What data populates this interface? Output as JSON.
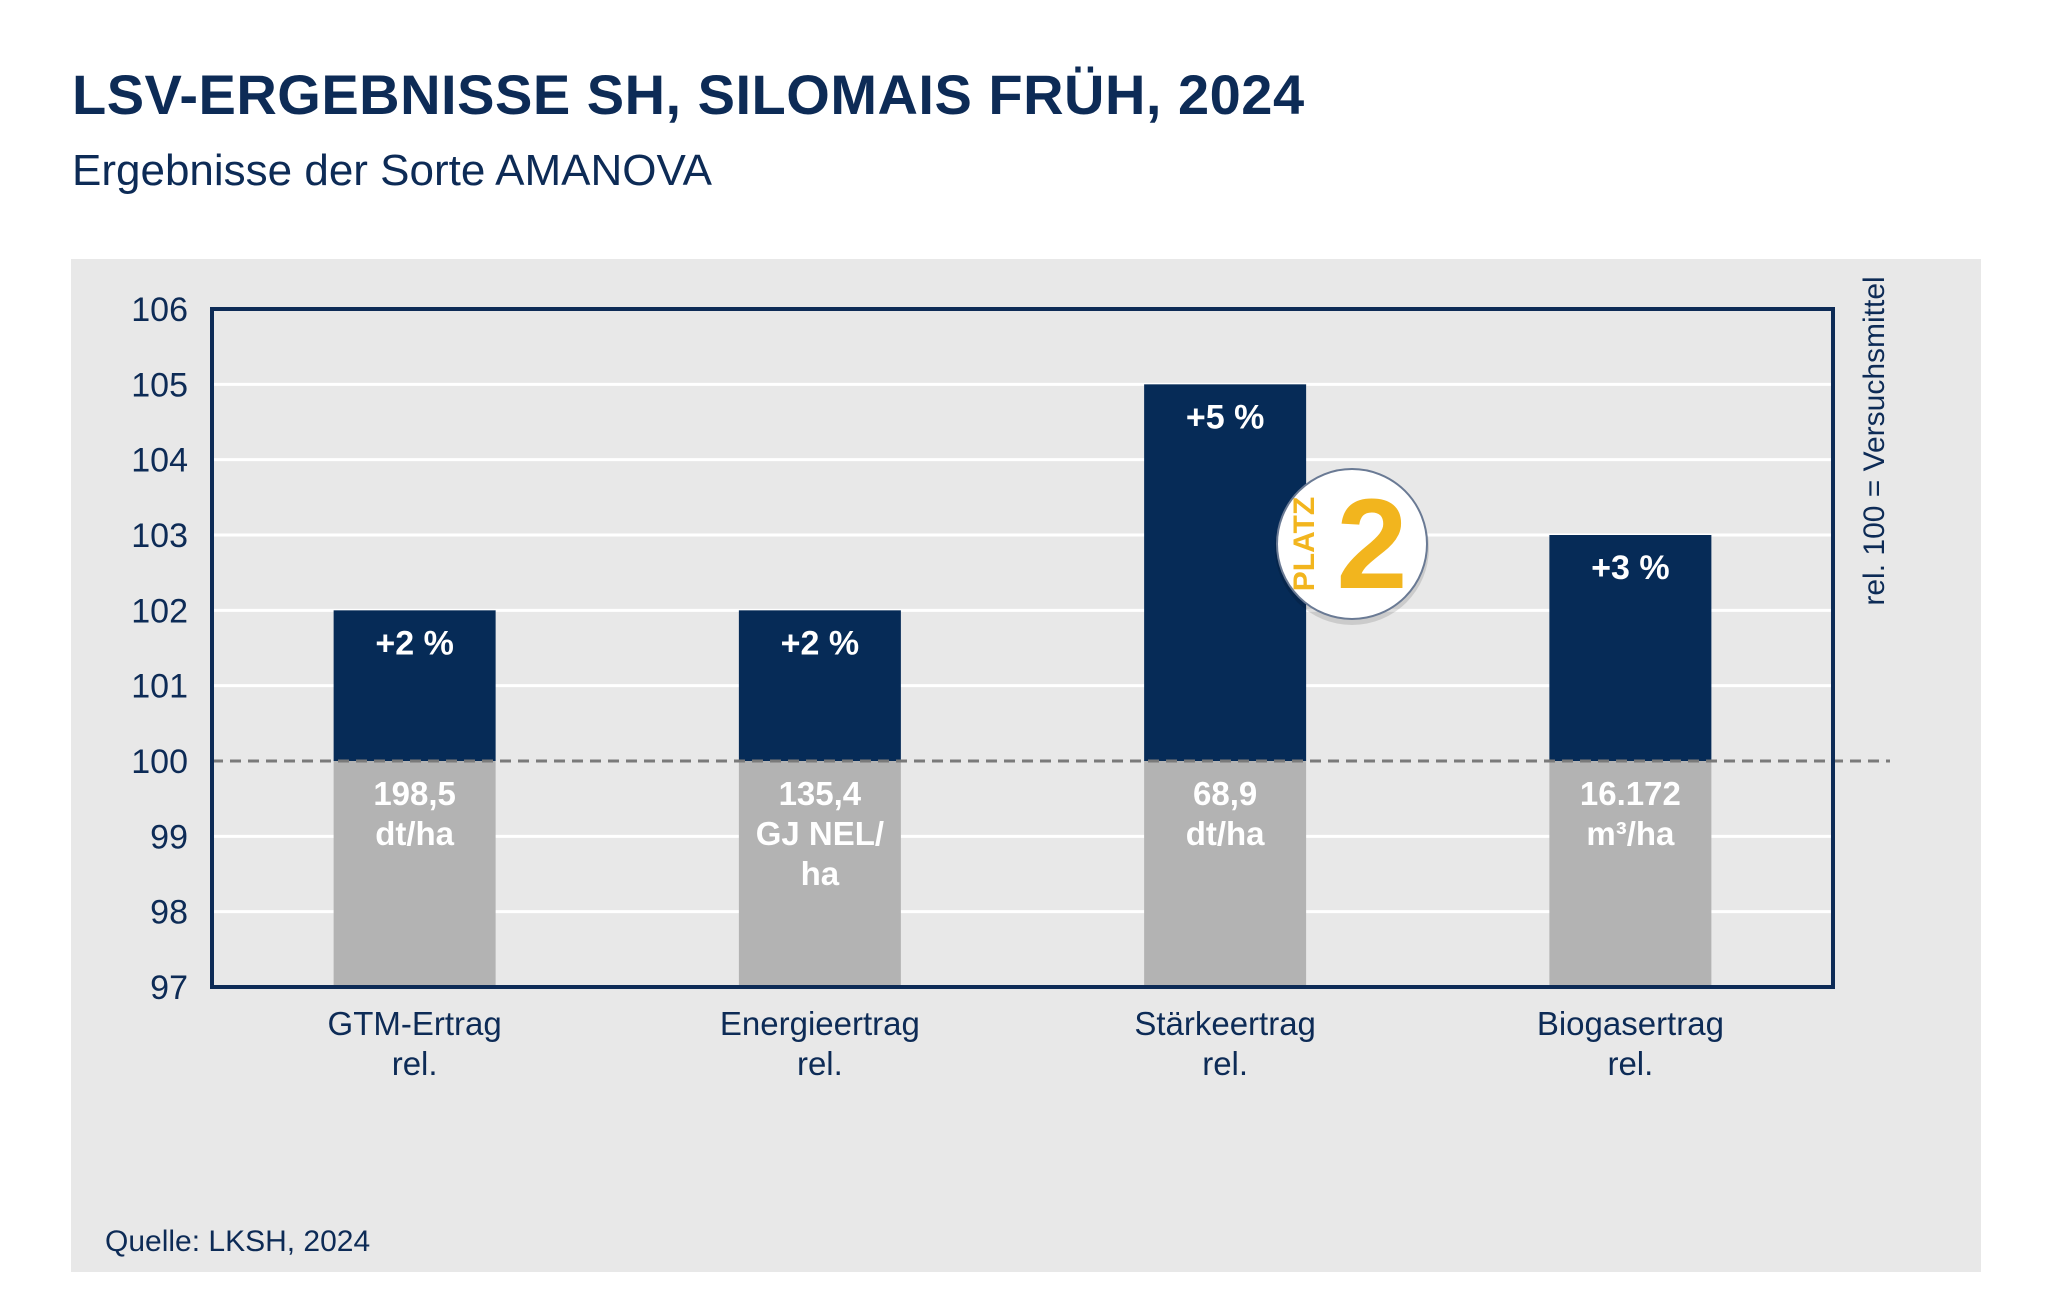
{
  "title": "LSV-ERGEBNISSE SH, SILOMAIS FRÜH, 2024",
  "subtitle": "Ergebnisse der Sorte AMANOVA",
  "source": "Quelle: LKSH, 2024",
  "badge": {
    "text": "PLATZ",
    "number": "2"
  },
  "colors": {
    "bar": "#062b57",
    "base": "#b3b3b3",
    "text_dark": "#0d2b56",
    "badge_gold": "#f2b51e",
    "panel": "#e8e8e8"
  },
  "chart_data": {
    "type": "bar",
    "title": "LSV-ERGEBNISSE SH, SILOMAIS FRÜH, 2024",
    "subtitle": "Ergebnisse der Sorte AMANOVA",
    "ylabel": "rel. 100 = Versuchsmittel",
    "ylim": [
      97,
      106
    ],
    "yticks": [
      "106",
      "105",
      "104",
      "103",
      "102",
      "101",
      "100",
      "99",
      "98",
      "97"
    ],
    "reference_line": 100,
    "grid": true,
    "categories": [
      [
        "GTM-Ertrag",
        "rel."
      ],
      [
        "Energieertrag",
        "rel."
      ],
      [
        "Stärkeertrag",
        "rel."
      ],
      [
        "Biogasertrag",
        "rel."
      ]
    ],
    "values": [
      102,
      102,
      105,
      103
    ],
    "value_labels": [
      "+2 %",
      "+2 %",
      "+5 %",
      "+3 %"
    ],
    "absolute_labels": [
      [
        "198,5",
        "dt/ha"
      ],
      [
        "135,4",
        "GJ NEL/",
        "ha"
      ],
      [
        "68,9",
        "dt/ha"
      ],
      [
        "16.172",
        "m³/ha"
      ]
    ]
  }
}
